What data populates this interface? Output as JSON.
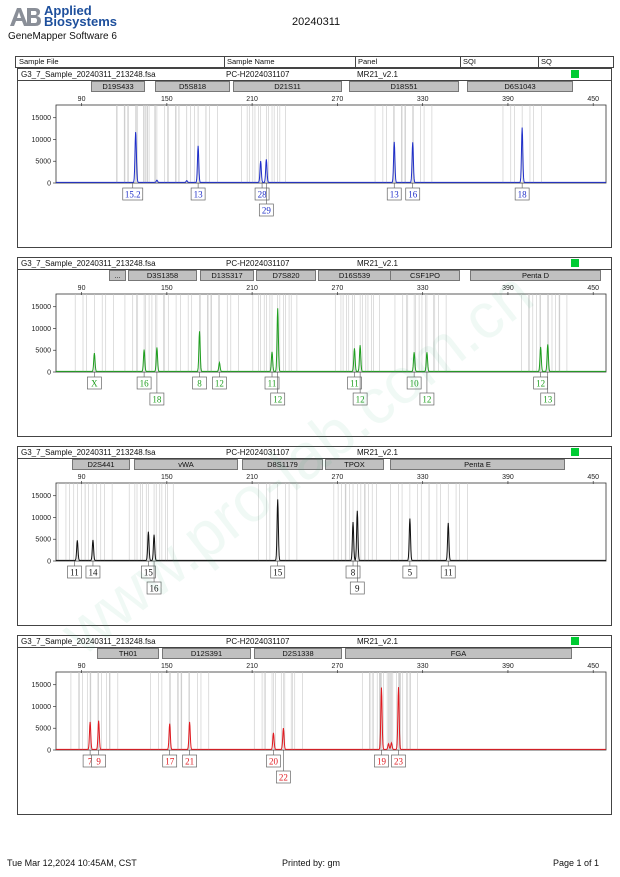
{
  "header": {
    "brand_line1": "Applied",
    "brand_line2": "Biosystems",
    "software": "GeneMapper Software 6",
    "date": "20240311"
  },
  "columns": [
    "Sample File",
    "Sample Name",
    "Panel",
    "SQI",
    "SQ"
  ],
  "footer": {
    "timestamp": "Tue Mar 12,2024 10:45AM, CST",
    "printed_by": "Printed by: gm",
    "page": "Page 1 of 1"
  },
  "watermark": "www.pro-lab.com.cn",
  "chart_data": [
    {
      "type": "line",
      "sample_file": "G3_7_Sample_20240311_213248.fsa",
      "sample_name": "PC-H2024031107",
      "panel": "MR21_v2.1",
      "color": "#1f2fc9",
      "xlim": [
        72,
        459
      ],
      "ylim": [
        0,
        17000
      ],
      "x_ticks": [
        90,
        150,
        210,
        270,
        330,
        390,
        450
      ],
      "y_ticks": [
        0,
        5000,
        10000,
        15000
      ],
      "markers": [
        "D19S433",
        "D5S818",
        "D21S11",
        "D18S51",
        "D6S1043"
      ],
      "peaks": [
        {
          "x": 128,
          "h": 10300
        },
        {
          "x": 128.5,
          "h": 2300
        },
        {
          "x": 172,
          "h": 8400
        },
        {
          "x": 216,
          "h": 4900
        },
        {
          "x": 220,
          "h": 5300
        },
        {
          "x": 310,
          "h": 9300
        },
        {
          "x": 323,
          "h": 9200
        },
        {
          "x": 400,
          "h": 12600
        },
        {
          "x": 143,
          "h": 500
        },
        {
          "x": 164,
          "h": 400
        }
      ],
      "alleles": [
        {
          "x": 126,
          "label": "15.2",
          "row": 0
        },
        {
          "x": 172,
          "label": "13",
          "row": 0
        },
        {
          "x": 217,
          "label": "28",
          "row": 0
        },
        {
          "x": 220,
          "label": "29",
          "row": 1
        },
        {
          "x": 310,
          "label": "13",
          "row": 0
        },
        {
          "x": 323,
          "label": "16",
          "row": 0
        },
        {
          "x": 400,
          "label": "18",
          "row": 0
        }
      ]
    },
    {
      "type": "line",
      "sample_file": "G3_7_Sample_20240311_213248.fsa",
      "sample_name": "PC-H2024031107",
      "panel": "MR21_v2.1",
      "color": "#1f9e1f",
      "xlim": [
        72,
        459
      ],
      "ylim": [
        0,
        17000
      ],
      "x_ticks": [
        90,
        150,
        210,
        270,
        330,
        390,
        450
      ],
      "y_ticks": [
        0,
        5000,
        10000,
        15000
      ],
      "markers": [
        "...",
        "D3S1358",
        "D13S317",
        "D7S820",
        "D16S539",
        "CSF1PO",
        "Penta D"
      ],
      "peaks": [
        {
          "x": 99,
          "h": 4200
        },
        {
          "x": 134,
          "h": 5000
        },
        {
          "x": 143,
          "h": 5500
        },
        {
          "x": 173,
          "h": 9200
        },
        {
          "x": 187,
          "h": 2000
        },
        {
          "x": 224,
          "h": 4500
        },
        {
          "x": 228,
          "h": 14500
        },
        {
          "x": 282,
          "h": 5300
        },
        {
          "x": 286,
          "h": 6000
        },
        {
          "x": 324,
          "h": 4400
        },
        {
          "x": 333,
          "h": 4400
        },
        {
          "x": 413,
          "h": 5600
        },
        {
          "x": 418,
          "h": 6200
        }
      ],
      "alleles": [
        {
          "x": 99,
          "label": "X",
          "row": 0
        },
        {
          "x": 134,
          "label": "16",
          "row": 0
        },
        {
          "x": 143,
          "label": "18",
          "row": 1
        },
        {
          "x": 173,
          "label": "8",
          "row": 0
        },
        {
          "x": 187,
          "label": "12",
          "row": 0
        },
        {
          "x": 224,
          "label": "11",
          "row": 0
        },
        {
          "x": 228,
          "label": "12",
          "row": 1
        },
        {
          "x": 282,
          "label": "11",
          "row": 0
        },
        {
          "x": 286,
          "label": "12",
          "row": 1
        },
        {
          "x": 324,
          "label": "10",
          "row": 0
        },
        {
          "x": 333,
          "label": "12",
          "row": 1
        },
        {
          "x": 413,
          "label": "12",
          "row": 0
        },
        {
          "x": 418,
          "label": "13",
          "row": 1
        }
      ]
    },
    {
      "type": "line",
      "sample_file": "G3_7_Sample_20240311_213248.fsa",
      "sample_name": "PC-H2024031107",
      "panel": "MR21_v2.1",
      "color": "#111111",
      "xlim": [
        72,
        459
      ],
      "ylim": [
        0,
        17000
      ],
      "x_ticks": [
        90,
        150,
        210,
        270,
        330,
        390,
        450
      ],
      "y_ticks": [
        0,
        5000,
        10000,
        15000
      ],
      "markers": [
        "D2S441",
        "vWA",
        "D8S1179",
        "TPOX",
        "Penta E"
      ],
      "peaks": [
        {
          "x": 87,
          "h": 4600
        },
        {
          "x": 98,
          "h": 4700
        },
        {
          "x": 137,
          "h": 6600
        },
        {
          "x": 141,
          "h": 5900
        },
        {
          "x": 228,
          "h": 14000
        },
        {
          "x": 281,
          "h": 8800
        },
        {
          "x": 284,
          "h": 11400
        },
        {
          "x": 321,
          "h": 9600
        },
        {
          "x": 348,
          "h": 8600
        }
      ],
      "alleles": [
        {
          "x": 85,
          "label": "11",
          "row": 0
        },
        {
          "x": 98,
          "label": "14",
          "row": 0
        },
        {
          "x": 137,
          "label": "15",
          "row": 0
        },
        {
          "x": 141,
          "label": "16",
          "row": 1
        },
        {
          "x": 228,
          "label": "15",
          "row": 0
        },
        {
          "x": 281,
          "label": "8",
          "row": 0
        },
        {
          "x": 284,
          "label": "9",
          "row": 1
        },
        {
          "x": 321,
          "label": "5",
          "row": 0
        },
        {
          "x": 348,
          "label": "11",
          "row": 0
        }
      ]
    },
    {
      "type": "line",
      "sample_file": "G3_7_Sample_20240311_213248.fsa",
      "sample_name": "PC-H2024031107",
      "panel": "MR21_v2.1",
      "color": "#e0191f",
      "xlim": [
        72,
        459
      ],
      "ylim": [
        0,
        17000
      ],
      "x_ticks": [
        90,
        150,
        210,
        270,
        330,
        390,
        450
      ],
      "y_ticks": [
        0,
        5000,
        10000,
        15000
      ],
      "markers": [
        "TH01",
        "D12S391",
        "D2S1338",
        "FGA"
      ],
      "peaks": [
        {
          "x": 96,
          "h": 6300
        },
        {
          "x": 102,
          "h": 6600
        },
        {
          "x": 152,
          "h": 5900
        },
        {
          "x": 166,
          "h": 6300
        },
        {
          "x": 225,
          "h": 3800
        },
        {
          "x": 232,
          "h": 4900
        },
        {
          "x": 301,
          "h": 14200
        },
        {
          "x": 313,
          "h": 14300
        },
        {
          "x": 306,
          "h": 1300
        },
        {
          "x": 308,
          "h": 1500
        }
      ],
      "alleles": [
        {
          "x": 96,
          "label": "7",
          "row": 0
        },
        {
          "x": 102,
          "label": "9",
          "row": 0
        },
        {
          "x": 152,
          "label": "17",
          "row": 0
        },
        {
          "x": 166,
          "label": "21",
          "row": 0
        },
        {
          "x": 225,
          "label": "20",
          "row": 0
        },
        {
          "x": 232,
          "label": "22",
          "row": 1
        },
        {
          "x": 301,
          "label": "19",
          "row": 0
        },
        {
          "x": 313,
          "label": "23",
          "row": 0
        }
      ]
    }
  ]
}
